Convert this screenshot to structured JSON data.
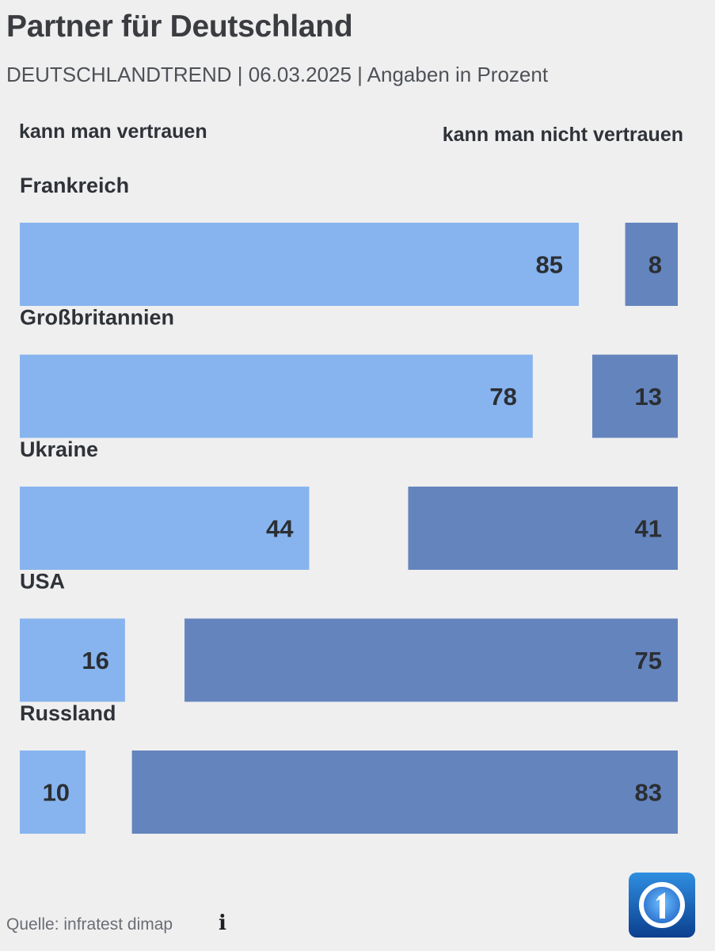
{
  "title": "Partner für Deutschland",
  "subtitle": "DEUTSCHLANDTREND | 06.03.2025 | Angaben in Prozent",
  "legend": {
    "left": "kann man vertrauen",
    "right": "kann man nicht vertrauen"
  },
  "source": "Quelle: infratest dimap",
  "info_icon": "i",
  "colors": {
    "trust": "#87b4ee",
    "distrust": "#6484bd",
    "background": "#efeff0",
    "text": "#2b2e33"
  },
  "chart_data": {
    "type": "bar",
    "title": "Partner für Deutschland",
    "categories": [
      "Frankreich",
      "Großbritannien",
      "Ukraine",
      "USA",
      "Russland"
    ],
    "series": [
      {
        "name": "kann man vertrauen",
        "values": [
          85,
          78,
          44,
          16,
          10
        ]
      },
      {
        "name": "kann man nicht vertrauen",
        "values": [
          8,
          13,
          41,
          75,
          83
        ]
      }
    ],
    "xlim": [
      0,
      100
    ],
    "grid": false
  }
}
